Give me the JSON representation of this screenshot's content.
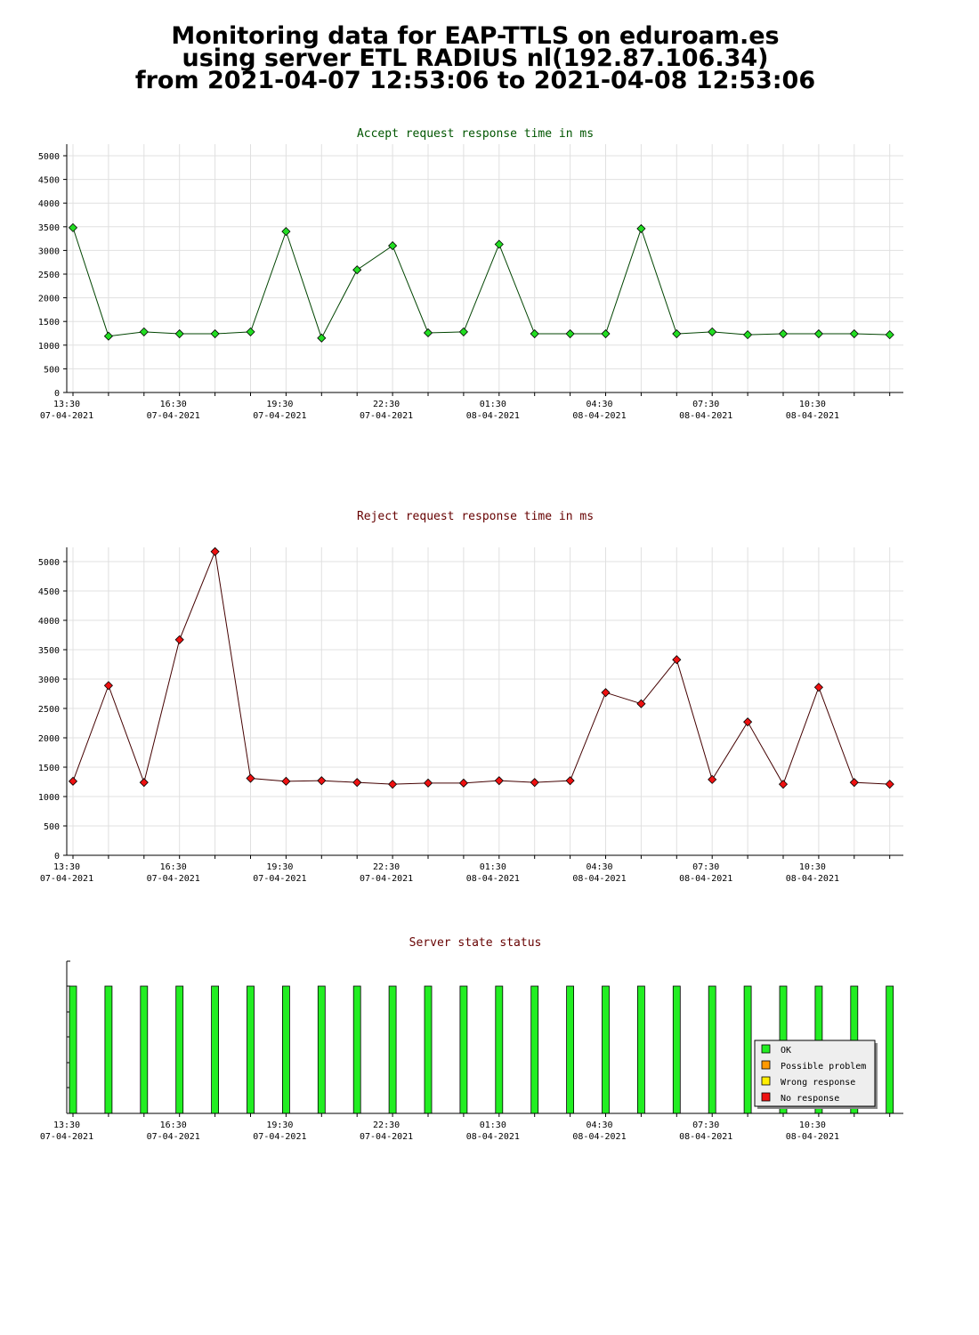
{
  "page": {
    "title_lines": [
      "Monitoring data for EAP-TTLS on eduroam.es",
      "using server ETL RADIUS nl(192.87.106.34)",
      "from 2021-04-07 12:53:06 to 2021-04-08 12:53:06"
    ]
  },
  "x_axis": {
    "ticks": [
      {
        "time": "13:30",
        "date": "07-04-2021"
      },
      {
        "time": "16:30",
        "date": "07-04-2021"
      },
      {
        "time": "19:30",
        "date": "07-04-2021"
      },
      {
        "time": "22:30",
        "date": "07-04-2021"
      },
      {
        "time": "01:30",
        "date": "08-04-2021"
      },
      {
        "time": "04:30",
        "date": "08-04-2021"
      },
      {
        "time": "07:30",
        "date": "08-04-2021"
      },
      {
        "time": "10:30",
        "date": "08-04-2021"
      }
    ]
  },
  "chart_data": [
    {
      "type": "line",
      "title": "Accept request response time in ms",
      "title_color": "#005500",
      "line_color": "#004400",
      "marker_color": "#22dd22",
      "ylim": [
        0,
        5000
      ],
      "yticks": [
        0,
        500,
        1000,
        1500,
        2000,
        2500,
        3000,
        3500,
        4000,
        4500,
        5000
      ],
      "grid": true,
      "values": [
        3480,
        1190,
        1280,
        1240,
        1240,
        1280,
        3400,
        1150,
        2590,
        3100,
        1260,
        1280,
        3130,
        1240,
        1240,
        1240,
        3460,
        1240,
        1280,
        1220,
        1240,
        1240,
        1240,
        1220
      ]
    },
    {
      "type": "line",
      "title": "Reject request response time in ms",
      "title_color": "#660000",
      "line_color": "#440000",
      "marker_color": "#ee1111",
      "ylim": [
        0,
        5000
      ],
      "yticks": [
        0,
        500,
        1000,
        1500,
        2000,
        2500,
        3000,
        3500,
        4000,
        4500,
        5000
      ],
      "grid": true,
      "values": [
        1260,
        2890,
        1240,
        3670,
        5170,
        1310,
        1260,
        1270,
        1240,
        1210,
        1230,
        1230,
        1270,
        1240,
        1270,
        2770,
        2580,
        3330,
        1290,
        2270,
        1210,
        2860,
        1240,
        1210
      ]
    },
    {
      "type": "bar",
      "title": "Server state status",
      "title_color": "#660000",
      "bar_color": "#22ee22",
      "values": [
        1,
        1,
        1,
        1,
        1,
        1,
        1,
        1,
        1,
        1,
        1,
        1,
        1,
        1,
        1,
        1,
        1,
        1,
        1,
        1,
        1,
        1,
        1,
        1
      ],
      "legend_position": "bottom-right",
      "legend": [
        {
          "label": "OK",
          "color": "#22ee22"
        },
        {
          "label": "Possible problem",
          "color": "#ff9900"
        },
        {
          "label": "Wrong response",
          "color": "#ffee00"
        },
        {
          "label": "No response",
          "color": "#ee1111"
        }
      ]
    }
  ]
}
